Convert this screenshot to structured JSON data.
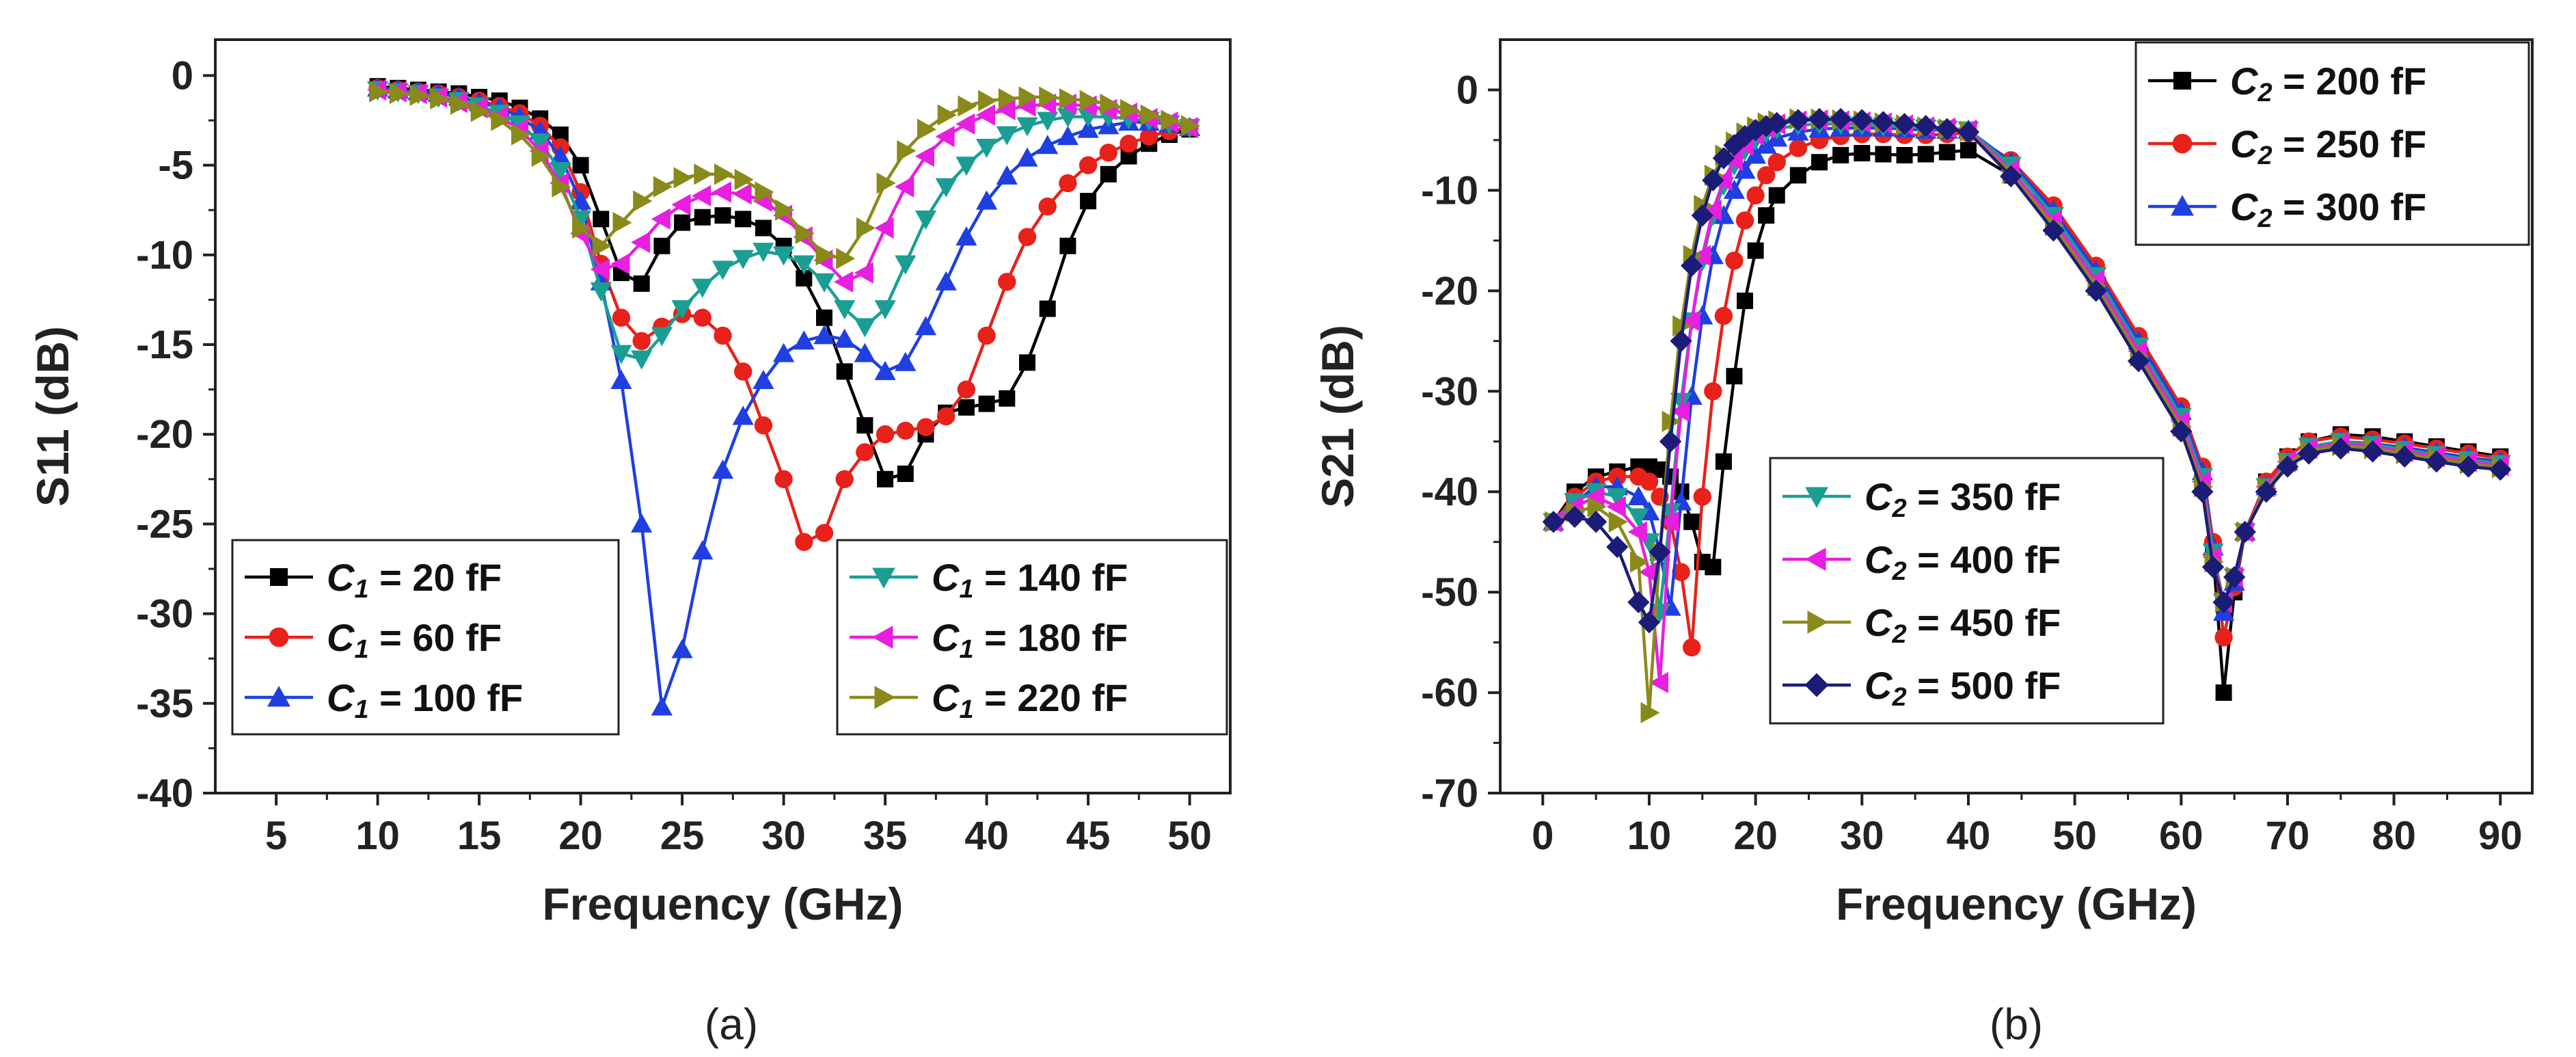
{
  "figure": {
    "panel_labels": [
      "(a)",
      "(b)"
    ]
  },
  "chart_data": [
    {
      "type": "line",
      "panel": "(a)",
      "xlabel": "Frequency (GHz)",
      "ylabel": "S11 (dB)",
      "xlim": [
        2,
        52
      ],
      "ylim": [
        -40,
        2
      ],
      "xticks": [
        "5",
        "10",
        "15",
        "20",
        "25",
        "30",
        "35",
        "40",
        "45",
        "50"
      ],
      "yticks": [
        "0",
        "-5",
        "-10",
        "-15",
        "-20",
        "-25",
        "-30",
        "-35",
        "-40"
      ],
      "x": [
        10,
        11,
        12,
        13,
        14,
        15,
        16,
        17,
        18,
        19,
        20,
        21,
        22,
        23,
        24,
        25,
        26,
        27,
        28,
        29,
        30,
        31,
        32,
        33,
        34,
        35,
        36,
        37,
        38,
        39,
        40,
        41,
        42,
        43,
        44,
        45,
        46,
        47,
        48,
        49,
        50
      ],
      "series": [
        {
          "name": "= 20 fF",
          "symbol": "C",
          "sub": "1",
          "color": "#000000",
          "marker": "square",
          "values": [
            -0.6,
            -0.7,
            -0.8,
            -0.9,
            -1.0,
            -1.2,
            -1.4,
            -1.8,
            -2.4,
            -3.3,
            -5.0,
            -8.0,
            -11.0,
            -11.6,
            -9.5,
            -8.2,
            -7.9,
            -7.8,
            -8.0,
            -8.5,
            -9.5,
            -11.3,
            -13.5,
            -16.5,
            -19.5,
            -22.5,
            -22.2,
            -20.0,
            -18.8,
            -18.5,
            -18.3,
            -18.0,
            -16.0,
            -13.0,
            -9.5,
            -7.0,
            -5.5,
            -4.5,
            -3.8,
            -3.3,
            -3.0
          ]
        },
        {
          "name": "= 60 fF",
          "symbol": "C",
          "sub": "1",
          "color": "#e8211b",
          "marker": "circle",
          "values": [
            -0.7,
            -0.8,
            -0.9,
            -1.0,
            -1.2,
            -1.4,
            -1.7,
            -2.1,
            -2.8,
            -4.0,
            -6.5,
            -10.5,
            -13.5,
            -14.8,
            -14.0,
            -13.3,
            -13.5,
            -14.5,
            -16.5,
            -19.5,
            -22.5,
            -26.0,
            -25.5,
            -22.5,
            -21.0,
            -20.0,
            -19.8,
            -19.6,
            -19.0,
            -17.5,
            -14.5,
            -11.5,
            -9.0,
            -7.3,
            -6.0,
            -5.0,
            -4.3,
            -3.8,
            -3.4,
            -3.1,
            -2.9
          ]
        },
        {
          "name": "= 100 fF",
          "symbol": "C",
          "sub": "1",
          "color": "#1f3fe0",
          "marker": "triangle",
          "values": [
            -0.7,
            -0.8,
            -0.9,
            -1.0,
            -1.2,
            -1.5,
            -1.8,
            -2.3,
            -3.1,
            -4.5,
            -7.0,
            -11.5,
            -17.0,
            -25.0,
            -35.2,
            -32.0,
            -26.5,
            -22.0,
            -19.0,
            -17.0,
            -15.5,
            -14.8,
            -14.5,
            -14.7,
            -15.5,
            -16.5,
            -16.0,
            -14.0,
            -11.5,
            -9.0,
            -7.0,
            -5.6,
            -4.6,
            -3.9,
            -3.4,
            -3.0,
            -2.8,
            -2.6,
            -2.6,
            -2.7,
            -2.9
          ]
        },
        {
          "name": "= 140 fF",
          "symbol": "C",
          "sub": "1",
          "color": "#1a9e93",
          "marker": "triangle-down",
          "values": [
            -0.8,
            -0.9,
            -1.0,
            -1.2,
            -1.4,
            -1.7,
            -2.1,
            -2.7,
            -3.7,
            -5.3,
            -8.0,
            -12.0,
            -15.5,
            -15.8,
            -14.5,
            -13.0,
            -11.8,
            -10.8,
            -10.2,
            -9.8,
            -10.0,
            -10.5,
            -11.5,
            -13.0,
            -14.0,
            -13.0,
            -10.5,
            -8.0,
            -6.2,
            -5.0,
            -4.0,
            -3.3,
            -2.8,
            -2.5,
            -2.3,
            -2.3,
            -2.3,
            -2.4,
            -2.5,
            -2.7,
            -2.9
          ]
        },
        {
          "name": "= 180 fF",
          "symbol": "C",
          "sub": "1",
          "color": "#e81ee0",
          "marker": "triangle-left",
          "values": [
            -0.8,
            -0.9,
            -1.0,
            -1.2,
            -1.5,
            -1.8,
            -2.3,
            -3.0,
            -4.2,
            -6.0,
            -8.8,
            -10.8,
            -10.5,
            -9.3,
            -8.0,
            -7.2,
            -6.7,
            -6.5,
            -6.6,
            -7.0,
            -7.8,
            -9.0,
            -10.3,
            -11.5,
            -11.0,
            -8.5,
            -6.2,
            -4.5,
            -3.4,
            -2.7,
            -2.2,
            -1.9,
            -1.7,
            -1.6,
            -1.6,
            -1.7,
            -1.9,
            -2.1,
            -2.4,
            -2.6,
            -2.9
          ]
        },
        {
          "name": "= 220 fF",
          "symbol": "C",
          "sub": "1",
          "color": "#8a8a1a",
          "marker": "triangle-right",
          "values": [
            -0.9,
            -1.0,
            -1.1,
            -1.3,
            -1.6,
            -2.0,
            -2.5,
            -3.3,
            -4.5,
            -6.2,
            -8.5,
            -9.5,
            -8.2,
            -7.0,
            -6.2,
            -5.7,
            -5.5,
            -5.5,
            -5.8,
            -6.5,
            -7.5,
            -8.8,
            -10.0,
            -10.2,
            -8.5,
            -6.0,
            -4.2,
            -3.0,
            -2.2,
            -1.7,
            -1.4,
            -1.3,
            -1.2,
            -1.2,
            -1.3,
            -1.4,
            -1.6,
            -1.9,
            -2.2,
            -2.5,
            -2.8
          ]
        }
      ]
    },
    {
      "type": "line",
      "panel": "(b)",
      "xlabel": "Frequency (GHz)",
      "ylabel": "S21 (dB)",
      "xlim": [
        -4,
        93
      ],
      "ylim": [
        -70,
        5
      ],
      "xticks": [
        "0",
        "10",
        "20",
        "30",
        "40",
        "50",
        "60",
        "70",
        "80",
        "90"
      ],
      "yticks": [
        "0",
        "-10",
        "-20",
        "-30",
        "-40",
        "-50",
        "-60",
        "-70"
      ],
      "x": [
        1,
        3,
        5,
        7,
        9,
        10,
        11,
        12,
        13,
        14,
        15,
        16,
        17,
        18,
        19,
        20,
        21,
        22,
        24,
        26,
        28,
        30,
        32,
        34,
        36,
        38,
        40,
        44,
        48,
        52,
        56,
        60,
        62,
        63,
        64,
        65,
        66,
        68,
        70,
        72,
        75,
        78,
        81,
        84,
        87,
        90
      ],
      "series": [
        {
          "name": "= 200 fF",
          "symbol": "C",
          "sub": "2",
          "color": "#000000",
          "marker": "square",
          "values": [
            -43.0,
            -40.0,
            -38.5,
            -38.0,
            -37.5,
            -37.5,
            -37.8,
            -38.5,
            -40.0,
            -43.0,
            -47.0,
            -47.5,
            -37.0,
            -28.5,
            -21.0,
            -16.0,
            -12.5,
            -10.5,
            -8.5,
            -7.2,
            -6.5,
            -6.3,
            -6.4,
            -6.5,
            -6.4,
            -6.2,
            -6.0,
            -8.5,
            -12.5,
            -18.5,
            -25.0,
            -32.0,
            -38.0,
            -46.0,
            -60.0,
            -50.0,
            -44.0,
            -39.0,
            -36.5,
            -35.0,
            -34.3,
            -34.5,
            -35.0,
            -35.5,
            -36.0,
            -36.5
          ]
        },
        {
          "name": "= 250 fF",
          "symbol": "C",
          "sub": "2",
          "color": "#e8211b",
          "marker": "circle",
          "values": [
            -43.0,
            -40.5,
            -39.0,
            -38.5,
            -38.5,
            -39.0,
            -40.5,
            -43.0,
            -48.0,
            -55.5,
            -40.5,
            -30.0,
            -22.5,
            -17.0,
            -13.0,
            -10.5,
            -8.5,
            -7.2,
            -5.8,
            -5.0,
            -4.6,
            -4.4,
            -4.4,
            -4.5,
            -4.5,
            -4.4,
            -4.3,
            -7.0,
            -11.5,
            -17.5,
            -24.5,
            -31.5,
            -37.5,
            -45.0,
            -54.5,
            -49.5,
            -44.0,
            -39.0,
            -36.5,
            -35.0,
            -34.5,
            -34.8,
            -35.2,
            -35.7,
            -36.2,
            -36.7
          ]
        },
        {
          "name": "= 300 fF",
          "symbol": "C",
          "sub": "2",
          "color": "#1f3fe0",
          "marker": "triangle",
          "values": [
            -43.0,
            -41.0,
            -39.5,
            -39.5,
            -40.5,
            -42.0,
            -46.0,
            -51.5,
            -41.0,
            -30.5,
            -22.5,
            -16.5,
            -12.5,
            -10.0,
            -8.0,
            -6.5,
            -5.5,
            -4.8,
            -4.2,
            -3.9,
            -3.8,
            -3.8,
            -3.8,
            -3.9,
            -4.0,
            -4.0,
            -4.0,
            -7.2,
            -12.0,
            -18.0,
            -25.0,
            -32.0,
            -38.0,
            -45.5,
            -52.0,
            -49.0,
            -44.0,
            -39.5,
            -37.0,
            -35.5,
            -35.0,
            -35.2,
            -35.6,
            -36.1,
            -36.6,
            -37.0
          ]
        },
        {
          "name": "= 350 fF",
          "symbol": "C",
          "sub": "2",
          "color": "#1a9e93",
          "marker": "triangle-down",
          "values": [
            -43.0,
            -41.0,
            -40.0,
            -40.5,
            -42.5,
            -45.0,
            -52.0,
            -42.0,
            -31.0,
            -23.0,
            -17.0,
            -12.5,
            -9.5,
            -7.5,
            -6.0,
            -5.0,
            -4.3,
            -3.9,
            -3.5,
            -3.4,
            -3.4,
            -3.5,
            -3.6,
            -3.7,
            -3.8,
            -3.9,
            -4.0,
            -7.5,
            -12.5,
            -18.5,
            -25.5,
            -32.5,
            -38.5,
            -46.0,
            -51.0,
            -48.5,
            -44.0,
            -39.5,
            -37.0,
            -35.5,
            -35.0,
            -35.3,
            -35.8,
            -36.3,
            -36.8,
            -37.2
          ]
        },
        {
          "name": "= 400 fF",
          "symbol": "C",
          "sub": "2",
          "color": "#e81ee0",
          "marker": "triangle-left",
          "values": [
            -43.0,
            -41.5,
            -40.5,
            -41.5,
            -44.0,
            -48.0,
            -59.0,
            -43.0,
            -32.0,
            -23.0,
            -16.5,
            -12.0,
            -9.0,
            -7.0,
            -5.5,
            -4.5,
            -3.8,
            -3.4,
            -3.1,
            -3.0,
            -3.1,
            -3.2,
            -3.3,
            -3.5,
            -3.7,
            -3.8,
            -4.0,
            -8.0,
            -13.0,
            -19.0,
            -26.0,
            -33.0,
            -39.0,
            -46.5,
            -51.0,
            -48.5,
            -44.0,
            -39.5,
            -37.0,
            -35.7,
            -35.2,
            -35.5,
            -36.0,
            -36.5,
            -37.0,
            -37.4
          ]
        },
        {
          "name": "= 450 fF",
          "symbol": "C",
          "sub": "2",
          "color": "#8a8a1a",
          "marker": "triangle-right",
          "values": [
            -43.0,
            -42.0,
            -41.5,
            -43.0,
            -47.0,
            -62.0,
            -46.0,
            -33.0,
            -23.5,
            -16.5,
            -11.5,
            -8.5,
            -6.5,
            -5.2,
            -4.3,
            -3.7,
            -3.3,
            -3.1,
            -2.9,
            -2.9,
            -3.0,
            -3.1,
            -3.3,
            -3.5,
            -3.7,
            -3.9,
            -4.1,
            -8.3,
            -13.5,
            -19.5,
            -26.5,
            -33.5,
            -39.5,
            -47.0,
            -51.0,
            -48.5,
            -44.0,
            -39.7,
            -37.2,
            -35.9,
            -35.4,
            -35.7,
            -36.2,
            -36.7,
            -37.2,
            -37.6
          ]
        },
        {
          "name": "= 500 fF",
          "symbol": "C",
          "sub": "2",
          "color": "#1b1b78",
          "marker": "diamond",
          "values": [
            -43.0,
            -42.5,
            -43.0,
            -45.5,
            -51.0,
            -53.0,
            -46.0,
            -35.0,
            -25.0,
            -17.5,
            -12.5,
            -9.0,
            -6.8,
            -5.5,
            -4.6,
            -4.0,
            -3.6,
            -3.3,
            -3.0,
            -2.9,
            -2.9,
            -3.0,
            -3.2,
            -3.4,
            -3.6,
            -3.9,
            -4.2,
            -8.6,
            -14.0,
            -20.0,
            -27.0,
            -34.0,
            -40.0,
            -47.5,
            -51.0,
            -48.5,
            -44.0,
            -40.0,
            -37.5,
            -36.2,
            -35.7,
            -36.0,
            -36.5,
            -37.0,
            -37.5,
            -37.8
          ]
        }
      ]
    }
  ]
}
